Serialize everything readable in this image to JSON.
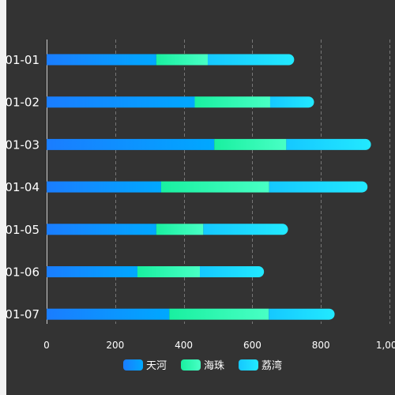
{
  "chart_data": {
    "type": "bar",
    "orientation": "horizontal",
    "stacked": true,
    "categories": [
      "01-01",
      "01-02",
      "01-03",
      "01-04",
      "01-05",
      "01-06",
      "01-07"
    ],
    "series": [
      {
        "name": "天河",
        "values": [
          320,
          432,
          489,
          334,
          320,
          265,
          358
        ],
        "color": "#1e90ff",
        "gradient": [
          "#1a7dff",
          "#00a8ff"
        ]
      },
      {
        "name": "海珠",
        "values": [
          150,
          220,
          210,
          315,
          137,
          182,
          290
        ],
        "color": "#2effb0",
        "gradient": [
          "#19f0a0",
          "#48ffc4"
        ]
      },
      {
        "name": "荔湾",
        "values": [
          252,
          128,
          247,
          287,
          247,
          187,
          192
        ],
        "color": "#19d8ff",
        "gradient": [
          "#15c8ff",
          "#22e9ff"
        ]
      }
    ],
    "xlim": [
      0,
      1000
    ],
    "x_ticks": [
      "0",
      "200",
      "400",
      "600",
      "800",
      "1,000"
    ],
    "grid": true,
    "legend_position": "bottom-center"
  },
  "colors": {
    "background": "#333333",
    "axis_label": "#ffffff",
    "grid": "#777777"
  }
}
